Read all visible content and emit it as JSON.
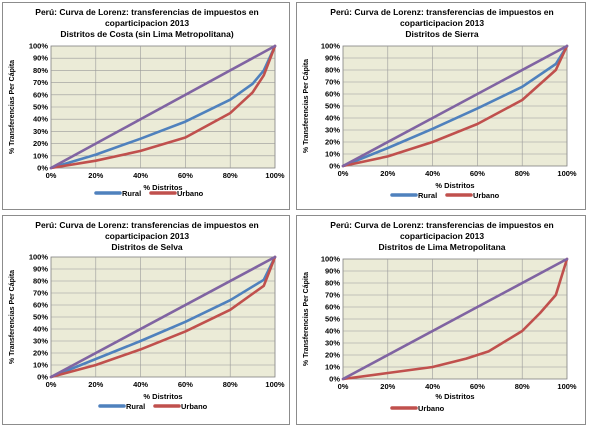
{
  "chart_data": [
    {
      "type": "line",
      "title": [
        "Perú: Curva de Lorenz: transferencias de impuestos en",
        "coparticipacion 2013",
        "Distritos de Costa (sin Lima Metropolitana)"
      ],
      "xlabel": "% Distritos",
      "ylabel": "% Transferencias Per Cápita",
      "xlim": [
        0,
        100
      ],
      "ylim": [
        0,
        100
      ],
      "xticks": [
        "0%",
        "20%",
        "40%",
        "60%",
        "80%",
        "100%"
      ],
      "yticks": [
        "0%",
        "10%",
        "20%",
        "30%",
        "40%",
        "50%",
        "60%",
        "70%",
        "80%",
        "90%",
        "100%"
      ],
      "grid": true,
      "legend_position": "bottom",
      "series": [
        {
          "name": "Rural",
          "color": "#4f81bd",
          "x": [
            0,
            20,
            40,
            60,
            80,
            90,
            95,
            100
          ],
          "y": [
            0,
            11,
            24,
            38,
            56,
            69,
            80,
            100
          ]
        },
        {
          "name": "Urbano",
          "color": "#c0504d",
          "x": [
            0,
            20,
            40,
            60,
            80,
            90,
            95,
            100
          ],
          "y": [
            0,
            6,
            14,
            25,
            45,
            62,
            76,
            100
          ]
        },
        {
          "color": "#8064a2",
          "x": [
            0,
            100
          ],
          "y": [
            0,
            100
          ]
        }
      ]
    },
    {
      "type": "line",
      "title": [
        "Perú: Curva de Lorenz: transferencias de impuestos en",
        "coparticipacion 2013",
        "Distritos de Sierra"
      ],
      "xlabel": "% Distritos",
      "ylabel": "% Transferencias Per Cápita",
      "xlim": [
        0,
        100
      ],
      "ylim": [
        0,
        100
      ],
      "xticks": [
        "0%",
        "20%",
        "40%",
        "60%",
        "80%",
        "100%"
      ],
      "yticks": [
        "0%",
        "10%",
        "20%",
        "30%",
        "40%",
        "50%",
        "60%",
        "70%",
        "80%",
        "90%",
        "100%"
      ],
      "grid": true,
      "legend_position": "bottom",
      "series": [
        {
          "name": "Rural",
          "color": "#4f81bd",
          "x": [
            0,
            20,
            40,
            60,
            80,
            95,
            100
          ],
          "y": [
            0,
            15,
            31,
            48,
            66,
            85,
            100
          ]
        },
        {
          "name": "Urbano",
          "color": "#c0504d",
          "x": [
            0,
            20,
            40,
            60,
            80,
            95,
            100
          ],
          "y": [
            0,
            8,
            20,
            35,
            55,
            80,
            100
          ]
        },
        {
          "color": "#8064a2",
          "x": [
            0,
            100
          ],
          "y": [
            0,
            100
          ]
        }
      ]
    },
    {
      "type": "line",
      "title": [
        "Perú: Curva de Lorenz: transferencias de impuestos en",
        "coparticipacion 2013",
        "Distritos de Selva"
      ],
      "xlabel": "% Distritos",
      "ylabel": "% Transferencias Per Cápita",
      "xlim": [
        0,
        100
      ],
      "ylim": [
        0,
        100
      ],
      "xticks": [
        "0%",
        "20%",
        "40%",
        "60%",
        "80%",
        "100%"
      ],
      "yticks": [
        "0%",
        "10%",
        "20%",
        "30%",
        "40%",
        "50%",
        "60%",
        "70%",
        "80%",
        "90%",
        "100%"
      ],
      "grid": true,
      "legend_position": "bottom",
      "series": [
        {
          "name": "Rural",
          "color": "#4f81bd",
          "x": [
            0,
            20,
            40,
            60,
            80,
            95,
            100
          ],
          "y": [
            0,
            15,
            30,
            46,
            64,
            81,
            100
          ]
        },
        {
          "name": "Urbano",
          "color": "#c0504d",
          "x": [
            0,
            20,
            40,
            60,
            80,
            95,
            100
          ],
          "y": [
            0,
            10,
            23,
            38,
            56,
            76,
            100
          ]
        },
        {
          "color": "#8064a2",
          "x": [
            0,
            100
          ],
          "y": [
            0,
            100
          ]
        }
      ]
    },
    {
      "type": "line",
      "title": [
        "Perú: Curva de Lorenz: transferencias de impuestos en",
        "coparticipacion 2013",
        "Distritos de Lima Metropolitana"
      ],
      "xlabel": "% Distritos",
      "ylabel": "% Transferencias Per Cápita",
      "xlim": [
        0,
        100
      ],
      "ylim": [
        0,
        100
      ],
      "xticks": [
        "0%",
        "20%",
        "40%",
        "60%",
        "80%",
        "100%"
      ],
      "yticks": [
        "0%",
        "10%",
        "20%",
        "30%",
        "40%",
        "50%",
        "60%",
        "70%",
        "80%",
        "90%",
        "100%"
      ],
      "grid": true,
      "legend_position": "bottom",
      "series": [
        {
          "name": "Urbano",
          "color": "#c0504d",
          "x": [
            0,
            20,
            40,
            55,
            65,
            80,
            88,
            95,
            100
          ],
          "y": [
            0,
            5,
            10,
            17,
            23,
            40,
            55,
            70,
            100
          ]
        },
        {
          "color": "#8064a2",
          "x": [
            0,
            100
          ],
          "y": [
            0,
            100
          ]
        }
      ]
    }
  ]
}
